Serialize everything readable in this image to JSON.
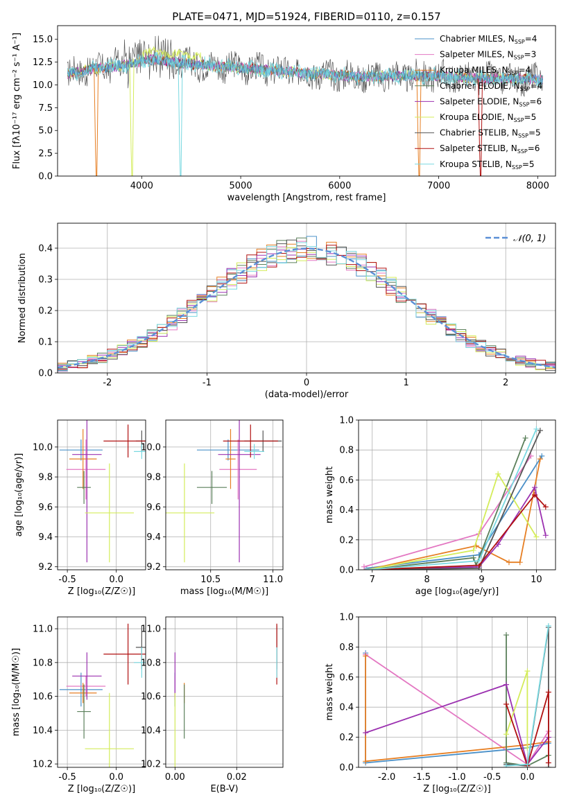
{
  "figure_title": "PLATE=0471, MJD=51924, FIBERID=0110, z=0.157",
  "colors": {
    "Chabrier MILES": "#4a90c8",
    "Salpeter MILES": "#e377c2",
    "Kroupa MILES": "#e67e22",
    "Chabrier ELODIE": "#5a7f5a",
    "Salpeter ELODIE": "#9b30b0",
    "Kroupa ELODIE": "#d4ec5a",
    "Chabrier STELIB": "#555555",
    "Salpeter STELIB": "#b01010",
    "Kroupa STELIB": "#78d8e0",
    "normal_curve": "#5a8fd6"
  },
  "chart_data": [
    {
      "id": "spectrum",
      "type": "line",
      "xlabel": "wavelength [Angstrom, rest frame]",
      "ylabel": "Flux [fλ10⁻¹⁷ erg cm⁻² s⁻¹ A⁻¹]",
      "xlim": [
        3150,
        8180
      ],
      "ylim": [
        0,
        16.5
      ],
      "xticks": [
        4000,
        5000,
        6000,
        7000,
        8000
      ],
      "yticks": [
        0.0,
        2.5,
        5.0,
        7.5,
        10.0,
        12.5,
        15.0
      ],
      "grid": false,
      "legend_position": "right",
      "legend": [
        {
          "prefix": "Chabrier MILES, N",
          "n": "4"
        },
        {
          "prefix": "Salpeter MILES, N",
          "n": "3"
        },
        {
          "prefix": "Kroupa MILES, N",
          "n": "4"
        },
        {
          "prefix": "Chabrier ELODIE, N",
          "n": "4"
        },
        {
          "prefix": "Salpeter ELODIE, N",
          "n": "6"
        },
        {
          "prefix": "Kroupa ELODIE, N",
          "n": "5"
        },
        {
          "prefix": "Chabrier STELIB, N",
          "n": "5"
        },
        {
          "prefix": "Salpeter STELIB, N",
          "n": "6"
        },
        {
          "prefix": "Kroupa STELIB, N",
          "n": "5"
        }
      ],
      "legend_subscript": "SSP",
      "continuum": [
        [
          3250,
          11.2
        ],
        [
          3500,
          11.8
        ],
        [
          3700,
          12.0
        ],
        [
          3900,
          12.3
        ],
        [
          4100,
          12.8
        ],
        [
          4300,
          12.5
        ],
        [
          4600,
          12.2
        ],
        [
          5000,
          11.9
        ],
        [
          5400,
          11.5
        ],
        [
          5800,
          11.2
        ],
        [
          6200,
          10.9
        ],
        [
          6600,
          11.0
        ],
        [
          7000,
          11.0
        ],
        [
          7400,
          10.7
        ],
        [
          7800,
          10.7
        ],
        [
          8050,
          10.6
        ]
      ],
      "drops": [
        {
          "series": "Kroupa MILES",
          "x": 3540
        },
        {
          "series": "Kroupa ELODIE",
          "x": 3900
        },
        {
          "series": "Kroupa STELIB",
          "x": 4390
        },
        {
          "series": "Kroupa MILES",
          "x": 6800
        },
        {
          "series": "Salpeter STELIB",
          "x": 7420
        }
      ]
    },
    {
      "id": "residuals",
      "type": "step",
      "xlabel": "(data-model)/error",
      "ylabel": "Normed distribution",
      "xlim": [
        -2.5,
        2.5
      ],
      "ylim": [
        0,
        0.48
      ],
      "xticks": [
        -2,
        -1,
        0,
        1,
        2
      ],
      "yticks": [
        0.0,
        0.1,
        0.2,
        0.3,
        0.4
      ],
      "grid": true,
      "legend_label": "𝒩(0, 1)",
      "legend_position": "top-right",
      "bin_width": 0.1
    },
    {
      "id": "age_Z",
      "type": "errorbar",
      "xlabel": "Z [log₁₀(Z/Z☉)]",
      "ylabel": "age  [log₁₀(age/yr)]",
      "xlim": [
        -0.6,
        0.3
      ],
      "ylim": [
        9.18,
        10.18
      ],
      "xticks": [
        -0.5,
        0.0
      ],
      "yticks": [
        9.2,
        9.4,
        9.6,
        9.8,
        10.0
      ],
      "grid": true,
      "points": [
        {
          "series": "Chabrier MILES",
          "x": -0.36,
          "xerr": 0.22,
          "y": 9.98,
          "yerr": 0.07
        },
        {
          "series": "Salpeter MILES",
          "x": -0.31,
          "xerr": 0.2,
          "y": 9.85,
          "yerr": 0.2
        },
        {
          "series": "Kroupa MILES",
          "x": -0.34,
          "xerr": 0.14,
          "y": 9.92,
          "yerr": 0.2
        },
        {
          "series": "Chabrier ELODIE",
          "x": -0.33,
          "xerr": 0.07,
          "y": 9.73,
          "yerr": 0.11
        },
        {
          "series": "Salpeter ELODIE",
          "x": -0.3,
          "xerr": 0.15,
          "y": 9.95,
          "yerr": 0.72
        },
        {
          "series": "Kroupa ELODIE",
          "x": -0.07,
          "xerr": 0.25,
          "y": 9.56,
          "yerr": 0.33
        },
        {
          "series": "Chabrier STELIB",
          "x": 0.26,
          "xerr": 0.06,
          "y": 10.04,
          "yerr": 0.07
        },
        {
          "series": "Salpeter STELIB",
          "x": 0.12,
          "xerr": 0.25,
          "y": 10.04,
          "yerr": 0.11
        },
        {
          "series": "Kroupa STELIB",
          "x": 0.26,
          "xerr": 0.08,
          "y": 9.97,
          "yerr": 0.05
        }
      ]
    },
    {
      "id": "age_mass",
      "type": "errorbar",
      "xlabel": "mass [log₁₀(M/M☉)]",
      "ylabel": "",
      "xlim": [
        10.14,
        11.08
      ],
      "ylim": [
        9.18,
        10.18
      ],
      "xticks": [
        10.5,
        11.0
      ],
      "yticks": [
        9.2,
        9.4,
        9.6,
        9.8,
        10.0
      ],
      "grid": true,
      "points": [
        {
          "series": "Chabrier MILES",
          "x": 10.64,
          "xerr": 0.25,
          "y": 9.98,
          "yerr": 0.07
        },
        {
          "series": "Salpeter MILES",
          "x": 10.72,
          "xerr": 0.15,
          "y": 9.85,
          "yerr": 0.2
        },
        {
          "series": "Kroupa MILES",
          "x": 10.66,
          "xerr": 0.04,
          "y": 9.92,
          "yerr": 0.2
        },
        {
          "series": "Chabrier ELODIE",
          "x": 10.51,
          "xerr": 0.12,
          "y": 9.73,
          "yerr": 0.11
        },
        {
          "series": "Salpeter ELODIE",
          "x": 10.73,
          "xerr": 0.17,
          "y": 9.95,
          "yerr": 0.72
        },
        {
          "series": "Kroupa ELODIE",
          "x": 10.29,
          "xerr": 0.24,
          "y": 9.56,
          "yerr": 0.33
        },
        {
          "series": "Chabrier STELIB",
          "x": 10.92,
          "xerr": 0.15,
          "y": 10.04,
          "yerr": 0.07
        },
        {
          "series": "Salpeter STELIB",
          "x": 10.82,
          "xerr": 0.22,
          "y": 10.04,
          "yerr": 0.11
        },
        {
          "series": "Kroupa STELIB",
          "x": 10.85,
          "xerr": 0.08,
          "y": 9.97,
          "yerr": 0.05
        }
      ]
    },
    {
      "id": "weight_age",
      "type": "line",
      "xlabel": "age  [log₁₀(age/yr)]",
      "ylabel": "mass weight",
      "xlim": [
        6.75,
        10.35
      ],
      "ylim": [
        0,
        1
      ],
      "xticks": [
        7,
        8,
        9,
        10
      ],
      "yticks": [
        0.0,
        0.2,
        0.4,
        0.6,
        0.8,
        1.0
      ],
      "grid": true,
      "series": [
        {
          "name": "Chabrier MILES",
          "points": [
            [
              6.9,
              0.01
            ],
            [
              8.95,
              0.1
            ],
            [
              10.1,
              0.76
            ]
          ]
        },
        {
          "name": "Salpeter MILES",
          "points": [
            [
              6.85,
              0.02
            ],
            [
              8.95,
              0.24
            ],
            [
              9.9,
              0.76
            ]
          ]
        },
        {
          "name": "Kroupa MILES",
          "points": [
            [
              6.9,
              0.0
            ],
            [
              8.9,
              0.16
            ],
            [
              9.5,
              0.05
            ],
            [
              9.7,
              0.05
            ],
            [
              10.07,
              0.74
            ]
          ]
        },
        {
          "name": "Chabrier ELODIE",
          "points": [
            [
              6.9,
              0.0
            ],
            [
              8.85,
              0.08
            ],
            [
              8.9,
              0.03
            ],
            [
              9.8,
              0.88
            ]
          ]
        },
        {
          "name": "Salpeter ELODIE",
          "points": [
            [
              6.9,
              0.0
            ],
            [
              8.95,
              0.02
            ],
            [
              9.3,
              0.17
            ],
            [
              9.97,
              0.55
            ],
            [
              10.17,
              0.23
            ]
          ]
        },
        {
          "name": "Kroupa ELODIE",
          "points": [
            [
              6.9,
              0.0
            ],
            [
              8.85,
              0.13
            ],
            [
              9.3,
              0.64
            ],
            [
              10.0,
              0.22
            ]
          ]
        },
        {
          "name": "Chabrier STELIB",
          "points": [
            [
              6.9,
              0.0
            ],
            [
              8.95,
              0.01
            ],
            [
              10.07,
              0.93
            ]
          ]
        },
        {
          "name": "Salpeter STELIB",
          "points": [
            [
              6.9,
              0.0
            ],
            [
              8.95,
              0.03
            ],
            [
              9.97,
              0.5
            ],
            [
              10.17,
              0.42
            ]
          ]
        },
        {
          "name": "Kroupa STELIB",
          "points": [
            [
              6.9,
              0.0
            ],
            [
              8.95,
              0.06
            ],
            [
              10.0,
              0.94
            ]
          ]
        }
      ]
    },
    {
      "id": "mass_Z",
      "type": "errorbar",
      "xlabel": "Z [log₁₀(Z/Z☉)]",
      "ylabel": "mass [log₁₀(M/M☉)]",
      "xlim": [
        -0.6,
        0.3
      ],
      "ylim": [
        10.18,
        11.07
      ],
      "xticks": [
        -0.5,
        0.0
      ],
      "yticks": [
        10.2,
        10.4,
        10.6,
        10.8,
        11.0
      ],
      "grid": true,
      "points": [
        {
          "series": "Chabrier MILES",
          "x": -0.36,
          "xerr": 0.22,
          "y": 10.64,
          "yerr": 0.1
        },
        {
          "series": "Salpeter MILES",
          "x": -0.31,
          "xerr": 0.2,
          "y": 10.66,
          "yerr": 0.06
        },
        {
          "series": "Kroupa MILES",
          "x": -0.34,
          "xerr": 0.14,
          "y": 10.62,
          "yerr": 0.06
        },
        {
          "series": "Chabrier ELODIE",
          "x": -0.33,
          "xerr": 0.07,
          "y": 10.51,
          "yerr": 0.16
        },
        {
          "series": "Salpeter ELODIE",
          "x": -0.3,
          "xerr": 0.15,
          "y": 10.72,
          "yerr": 0.14
        },
        {
          "series": "Kroupa ELODIE",
          "x": -0.07,
          "xerr": 0.25,
          "y": 10.29,
          "yerr": 0.33
        },
        {
          "series": "Chabrier STELIB",
          "x": 0.26,
          "xerr": 0.06,
          "y": 10.89,
          "yerr": 0.13
        },
        {
          "series": "Salpeter STELIB",
          "x": 0.12,
          "xerr": 0.25,
          "y": 10.85,
          "yerr": 0.18
        },
        {
          "series": "Kroupa STELIB",
          "x": 0.26,
          "xerr": 0.08,
          "y": 10.8,
          "yerr": 0.09
        }
      ]
    },
    {
      "id": "mass_EBV",
      "type": "errorbar",
      "xlabel": "E(B-V)",
      "ylabel": "",
      "xlim": [
        -0.003,
        0.035
      ],
      "ylim": [
        10.18,
        11.07
      ],
      "xticks": [
        0.0,
        0.02
      ],
      "yticks": [
        10.2,
        10.4,
        10.6,
        10.8,
        11.0
      ],
      "grid": true,
      "points": [
        {
          "series": "Chabrier MILES",
          "x": 0.0,
          "xerr": 0.0,
          "y": 10.64,
          "yerr": 0.1
        },
        {
          "series": "Salpeter MILES",
          "x": 0.0,
          "xerr": 0.0,
          "y": 10.66,
          "yerr": 0.06
        },
        {
          "series": "Kroupa MILES",
          "x": 0.003,
          "xerr": 0.0,
          "y": 10.62,
          "yerr": 0.06
        },
        {
          "series": "Chabrier ELODIE",
          "x": 0.003,
          "xerr": 0.0,
          "y": 10.51,
          "yerr": 0.16
        },
        {
          "series": "Salpeter ELODIE",
          "x": 0.0,
          "xerr": 0.0,
          "y": 10.72,
          "yerr": 0.14
        },
        {
          "series": "Kroupa ELODIE",
          "x": 0.0,
          "xerr": 0.0,
          "y": 10.29,
          "yerr": 0.33
        },
        {
          "series": "Chabrier STELIB",
          "x": 0.033,
          "xerr": 0.0,
          "y": 10.89,
          "yerr": 0.13
        },
        {
          "series": "Salpeter STELIB",
          "x": 0.033,
          "xerr": 0.0,
          "y": 10.85,
          "yerr": 0.18
        },
        {
          "series": "Kroupa STELIB",
          "x": 0.033,
          "xerr": 0.0,
          "y": 10.8,
          "yerr": 0.09
        }
      ]
    },
    {
      "id": "weight_Z",
      "type": "line",
      "xlabel": "Z [log₁₀(Z/Z☉)]",
      "ylabel": "mass weight",
      "xlim": [
        -2.4,
        0.4
      ],
      "ylim": [
        0,
        1
      ],
      "xticks": [
        -2.0,
        -1.5,
        -1.0,
        -0.5,
        0.0
      ],
      "yticks": [
        0.0,
        0.2,
        0.4,
        0.6,
        0.8,
        1.0
      ],
      "grid": true,
      "series": [
        {
          "name": "Chabrier MILES",
          "points": [
            [
              -2.3,
              0.76
            ],
            [
              -2.3,
              0.03
            ],
            [
              0.0,
              0.13
            ],
            [
              0.3,
              0.16
            ]
          ]
        },
        {
          "name": "Salpeter MILES",
          "points": [
            [
              -2.3,
              0.75
            ],
            [
              0.0,
              0.02
            ],
            [
              0.3,
              0.24
            ]
          ]
        },
        {
          "name": "Kroupa MILES",
          "points": [
            [
              -2.3,
              0.74
            ],
            [
              -2.3,
              0.04
            ],
            [
              0.0,
              0.15
            ],
            [
              0.3,
              0.17
            ]
          ]
        },
        {
          "name": "Chabrier ELODIE",
          "points": [
            [
              -0.3,
              0.88
            ],
            [
              -0.3,
              0.03
            ],
            [
              0.0,
              0.01
            ],
            [
              0.3,
              0.08
            ]
          ]
        },
        {
          "name": "Salpeter ELODIE",
          "points": [
            [
              -2.3,
              0.23
            ],
            [
              -0.3,
              0.55
            ],
            [
              0.0,
              0.02
            ],
            [
              0.3,
              0.2
            ]
          ]
        },
        {
          "name": "Kroupa ELODIE",
          "points": [
            [
              -0.3,
              0.22
            ],
            [
              0.0,
              0.64
            ],
            [
              0.0,
              0.13
            ]
          ]
        },
        {
          "name": "Chabrier STELIB",
          "points": [
            [
              -0.3,
              0.02
            ],
            [
              0.0,
              0.01
            ],
            [
              0.3,
              0.93
            ],
            [
              0.3,
              0.0
            ]
          ]
        },
        {
          "name": "Salpeter STELIB",
          "points": [
            [
              -0.3,
              0.42
            ],
            [
              0.0,
              0.01
            ],
            [
              0.3,
              0.5
            ],
            [
              0.3,
              0.03
            ]
          ]
        },
        {
          "name": "Kroupa STELIB",
          "points": [
            [
              -0.3,
              0.01
            ],
            [
              0.0,
              0.02
            ],
            [
              0.3,
              0.94
            ]
          ]
        }
      ]
    }
  ]
}
